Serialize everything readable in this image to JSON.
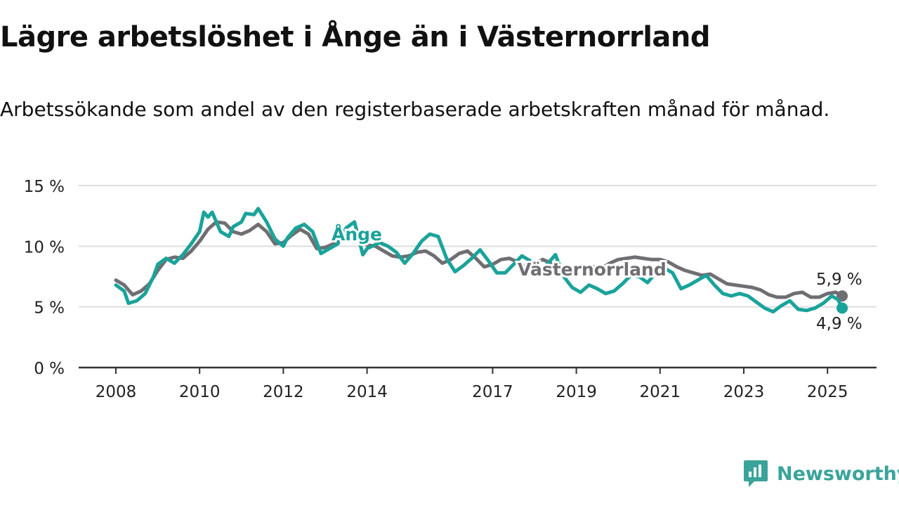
{
  "title": "Lägre arbetslöshet i Ånge än i Västernorrland",
  "subtitle": "Arbetssökande som andel av den registerbaserade arbetskraften månad för månad.",
  "brand": "Newsworthy",
  "colors": {
    "ange": "#1aa39a",
    "vasternorrland": "#6f6e72",
    "grid": "#dddddd",
    "axis": "#333333",
    "text": "#222222"
  },
  "chart_data": {
    "type": "line",
    "title": "Lägre arbetslöshet i Ånge än i Västernorrland",
    "ylim": [
      0,
      15
    ],
    "y_ticks": [
      0,
      5,
      10,
      15
    ],
    "y_tick_labels": [
      "0 %",
      "5 %",
      "10 %",
      "15 %"
    ],
    "x_ticks": [
      2008,
      2010,
      2012,
      2014,
      2017,
      2019,
      2021,
      2023,
      2025
    ],
    "x_tick_labels": [
      "2008",
      "2010",
      "2012",
      "2014",
      "2017",
      "2019",
      "2021",
      "2023",
      "2025"
    ],
    "xlim": [
      2007.83,
      2026.33
    ],
    "grid": "horizontal",
    "series": [
      {
        "name": "Västernorrland",
        "color": "#6f6e72",
        "points": [
          [
            2008.0,
            7.2
          ],
          [
            2008.2,
            6.8
          ],
          [
            2008.4,
            6.0
          ],
          [
            2008.6,
            6.3
          ],
          [
            2008.8,
            6.9
          ],
          [
            2009.0,
            8.0
          ],
          [
            2009.2,
            8.9
          ],
          [
            2009.4,
            9.1
          ],
          [
            2009.6,
            9.0
          ],
          [
            2009.8,
            9.6
          ],
          [
            2010.0,
            10.4
          ],
          [
            2010.2,
            11.4
          ],
          [
            2010.4,
            12.0
          ],
          [
            2010.6,
            11.9
          ],
          [
            2010.8,
            11.2
          ],
          [
            2011.0,
            11.0
          ],
          [
            2011.2,
            11.3
          ],
          [
            2011.4,
            11.8
          ],
          [
            2011.6,
            11.2
          ],
          [
            2011.8,
            10.2
          ],
          [
            2012.0,
            10.3
          ],
          [
            2012.2,
            10.9
          ],
          [
            2012.4,
            11.4
          ],
          [
            2012.6,
            11.0
          ],
          [
            2012.8,
            9.8
          ],
          [
            2013.0,
            9.9
          ],
          [
            2013.2,
            10.2
          ],
          [
            2013.4,
            10.6
          ],
          [
            2013.6,
            10.9
          ],
          [
            2013.8,
            10.4
          ],
          [
            2014.0,
            10.1
          ],
          [
            2014.2,
            10.0
          ],
          [
            2014.4,
            9.6
          ],
          [
            2014.6,
            9.2
          ],
          [
            2014.8,
            9.1
          ],
          [
            2015.0,
            9.2
          ],
          [
            2015.2,
            9.5
          ],
          [
            2015.4,
            9.6
          ],
          [
            2015.6,
            9.2
          ],
          [
            2015.8,
            8.6
          ],
          [
            2016.0,
            8.9
          ],
          [
            2016.2,
            9.4
          ],
          [
            2016.4,
            9.6
          ],
          [
            2016.6,
            9.0
          ],
          [
            2016.8,
            8.3
          ],
          [
            2017.0,
            8.5
          ],
          [
            2017.2,
            8.9
          ],
          [
            2017.4,
            9.0
          ],
          [
            2017.6,
            8.7
          ],
          [
            2017.8,
            8.2
          ],
          [
            2018.0,
            8.6
          ],
          [
            2018.2,
            8.9
          ],
          [
            2018.4,
            8.6
          ],
          [
            2018.6,
            8.0
          ],
          [
            2018.8,
            8.0
          ],
          [
            2019.0,
            8.2
          ],
          [
            2019.2,
            8.4
          ],
          [
            2019.4,
            8.3
          ],
          [
            2019.6,
            8.2
          ],
          [
            2019.8,
            8.6
          ],
          [
            2020.0,
            8.9
          ],
          [
            2020.2,
            9.0
          ],
          [
            2020.4,
            9.1
          ],
          [
            2020.6,
            9.0
          ],
          [
            2020.8,
            8.9
          ],
          [
            2021.0,
            8.9
          ],
          [
            2021.2,
            8.7
          ],
          [
            2021.4,
            8.3
          ],
          [
            2021.6,
            8.0
          ],
          [
            2021.8,
            7.8
          ],
          [
            2022.0,
            7.6
          ],
          [
            2022.2,
            7.7
          ],
          [
            2022.4,
            7.3
          ],
          [
            2022.6,
            6.9
          ],
          [
            2022.8,
            6.8
          ],
          [
            2023.0,
            6.7
          ],
          [
            2023.2,
            6.6
          ],
          [
            2023.4,
            6.4
          ],
          [
            2023.6,
            6.0
          ],
          [
            2023.8,
            5.8
          ],
          [
            2024.0,
            5.8
          ],
          [
            2024.2,
            6.1
          ],
          [
            2024.4,
            6.2
          ],
          [
            2024.6,
            5.8
          ],
          [
            2024.8,
            5.8
          ],
          [
            2025.0,
            6.1
          ],
          [
            2025.2,
            6.2
          ],
          [
            2025.35,
            5.9
          ]
        ]
      },
      {
        "name": "Ånge",
        "color": "#1aa39a",
        "points": [
          [
            2008.0,
            6.8
          ],
          [
            2008.2,
            6.3
          ],
          [
            2008.3,
            5.3
          ],
          [
            2008.5,
            5.5
          ],
          [
            2008.7,
            6.1
          ],
          [
            2008.9,
            7.5
          ],
          [
            2009.0,
            8.5
          ],
          [
            2009.2,
            9.0
          ],
          [
            2009.4,
            8.6
          ],
          [
            2009.6,
            9.3
          ],
          [
            2009.8,
            10.2
          ],
          [
            2010.0,
            11.2
          ],
          [
            2010.1,
            12.8
          ],
          [
            2010.2,
            12.4
          ],
          [
            2010.3,
            12.8
          ],
          [
            2010.5,
            11.2
          ],
          [
            2010.7,
            10.8
          ],
          [
            2010.8,
            11.6
          ],
          [
            2011.0,
            12.0
          ],
          [
            2011.1,
            12.7
          ],
          [
            2011.3,
            12.6
          ],
          [
            2011.4,
            13.1
          ],
          [
            2011.6,
            12.0
          ],
          [
            2011.8,
            10.6
          ],
          [
            2012.0,
            10.0
          ],
          [
            2012.1,
            10.7
          ],
          [
            2012.3,
            11.5
          ],
          [
            2012.5,
            11.8
          ],
          [
            2012.7,
            11.2
          ],
          [
            2012.9,
            9.4
          ],
          [
            2013.1,
            9.8
          ],
          [
            2013.3,
            10.2
          ],
          [
            2013.5,
            11.5
          ],
          [
            2013.7,
            12.0
          ],
          [
            2013.9,
            9.3
          ],
          [
            2014.0,
            9.8
          ],
          [
            2014.3,
            10.3
          ],
          [
            2014.5,
            10.0
          ],
          [
            2014.7,
            9.5
          ],
          [
            2014.9,
            8.6
          ],
          [
            2015.1,
            9.4
          ],
          [
            2015.3,
            10.4
          ],
          [
            2015.5,
            11.0
          ],
          [
            2015.7,
            10.8
          ],
          [
            2015.9,
            9.0
          ],
          [
            2016.1,
            7.9
          ],
          [
            2016.3,
            8.4
          ],
          [
            2016.5,
            9.0
          ],
          [
            2016.7,
            9.7
          ],
          [
            2016.9,
            8.8
          ],
          [
            2017.1,
            7.8
          ],
          [
            2017.3,
            7.8
          ],
          [
            2017.5,
            8.5
          ],
          [
            2017.7,
            9.2
          ],
          [
            2017.9,
            8.8
          ],
          [
            2018.1,
            7.8
          ],
          [
            2018.3,
            8.5
          ],
          [
            2018.5,
            9.3
          ],
          [
            2018.7,
            7.5
          ],
          [
            2018.9,
            6.6
          ],
          [
            2019.1,
            6.2
          ],
          [
            2019.3,
            6.8
          ],
          [
            2019.5,
            6.5
          ],
          [
            2019.7,
            6.1
          ],
          [
            2019.9,
            6.3
          ],
          [
            2020.1,
            6.9
          ],
          [
            2020.3,
            7.6
          ],
          [
            2020.5,
            7.5
          ],
          [
            2020.7,
            7.0
          ],
          [
            2020.9,
            7.8
          ],
          [
            2021.1,
            8.2
          ],
          [
            2021.3,
            7.8
          ],
          [
            2021.5,
            6.5
          ],
          [
            2021.7,
            6.8
          ],
          [
            2021.9,
            7.2
          ],
          [
            2022.1,
            7.6
          ],
          [
            2022.3,
            6.8
          ],
          [
            2022.5,
            6.1
          ],
          [
            2022.7,
            5.9
          ],
          [
            2022.9,
            6.1
          ],
          [
            2023.1,
            5.9
          ],
          [
            2023.3,
            5.4
          ],
          [
            2023.5,
            4.9
          ],
          [
            2023.7,
            4.6
          ],
          [
            2023.9,
            5.1
          ],
          [
            2024.1,
            5.5
          ],
          [
            2024.3,
            4.8
          ],
          [
            2024.5,
            4.7
          ],
          [
            2024.7,
            4.9
          ],
          [
            2024.9,
            5.3
          ],
          [
            2025.1,
            5.9
          ],
          [
            2025.25,
            5.6
          ],
          [
            2025.35,
            4.9
          ]
        ]
      }
    ],
    "series_labels": [
      "Ånge",
      "Västernorrland"
    ],
    "end_labels": [
      "5,9 %",
      "4,9 %"
    ]
  }
}
